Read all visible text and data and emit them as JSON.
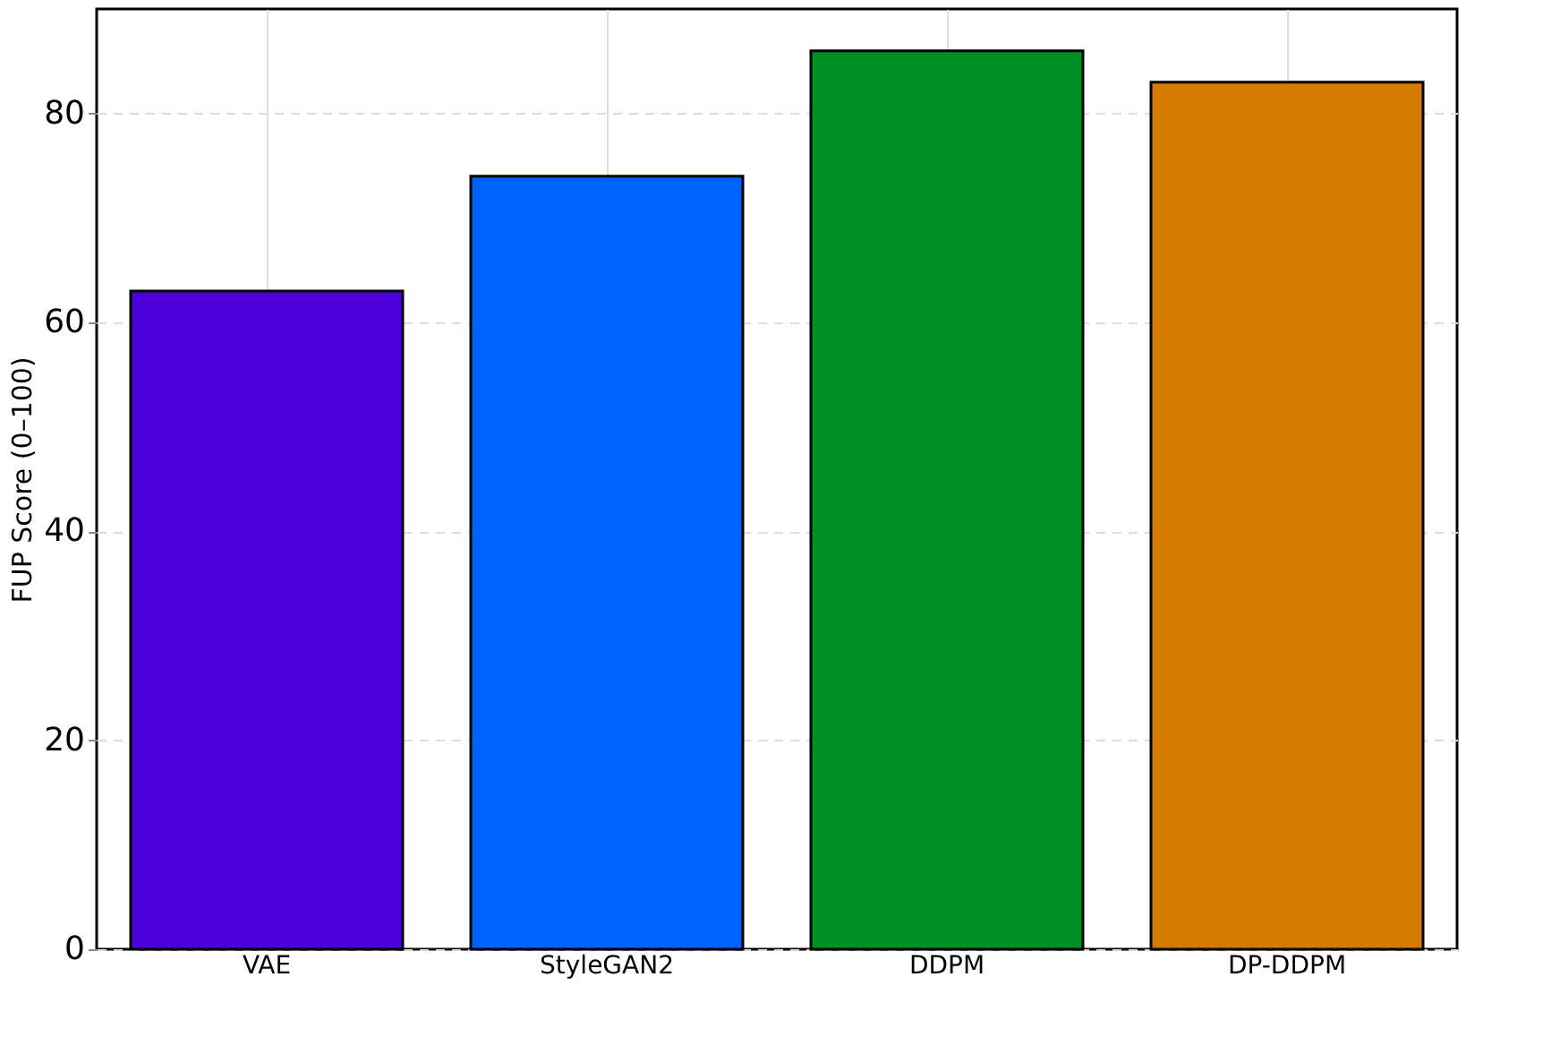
{
  "chart_data": {
    "type": "bar",
    "ylabel": "FUP Score (0–100)",
    "categories": [
      "VAE",
      "StyleGAN2",
      "DDPM",
      "DP-DDPM"
    ],
    "values": [
      63,
      74,
      86,
      83
    ],
    "colors": [
      "#4b00dc",
      "#0062ff",
      "#008f22",
      "#d47a00"
    ],
    "ylim": [
      0,
      90
    ],
    "yticks": [
      0,
      20,
      40,
      60,
      80
    ],
    "grid": true
  }
}
